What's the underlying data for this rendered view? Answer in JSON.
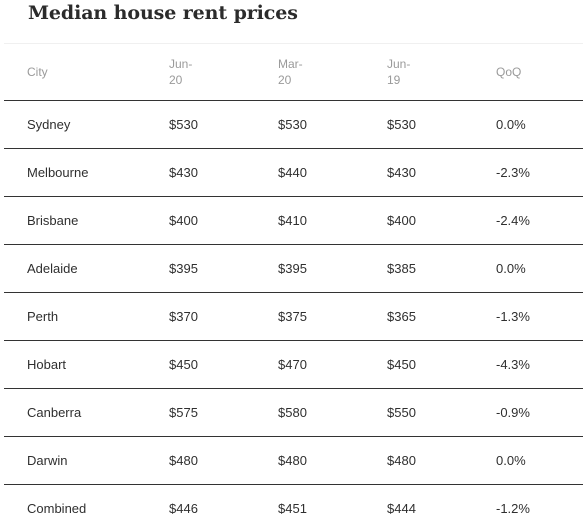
{
  "title": "Median house rent prices",
  "columns": {
    "city": "City",
    "jun20_a": "Jun-",
    "jun20_b": "20",
    "mar20_a": "Mar-",
    "mar20_b": "20",
    "jun19_a": "Jun-",
    "jun19_b": "19",
    "qoq": "QoQ"
  },
  "rows": [
    {
      "city": "Sydney",
      "jun20": "$530",
      "mar20": "$530",
      "jun19": "$530",
      "qoq": "0.0%"
    },
    {
      "city": "Melbourne",
      "jun20": "$430",
      "mar20": "$440",
      "jun19": "$430",
      "qoq": "-2.3%"
    },
    {
      "city": "Brisbane",
      "jun20": "$400",
      "mar20": "$410",
      "jun19": "$400",
      "qoq": "-2.4%"
    },
    {
      "city": "Adelaide",
      "jun20": "$395",
      "mar20": "$395",
      "jun19": "$385",
      "qoq": "0.0%"
    },
    {
      "city": "Perth",
      "jun20": "$370",
      "mar20": "$375",
      "jun19": "$365",
      "qoq": "-1.3%"
    },
    {
      "city": "Hobart",
      "jun20": "$450",
      "mar20": "$470",
      "jun19": "$450",
      "qoq": "-4.3%"
    },
    {
      "city": "Canberra",
      "jun20": "$575",
      "mar20": "$580",
      "jun19": "$550",
      "qoq": "-0.9%"
    },
    {
      "city": "Darwin",
      "jun20": "$480",
      "mar20": "$480",
      "jun19": "$480",
      "qoq": "0.0%"
    },
    {
      "city": "Combined",
      "jun20": "$446",
      "mar20": "$451",
      "jun19": "$444",
      "qoq": "-1.2%"
    }
  ]
}
